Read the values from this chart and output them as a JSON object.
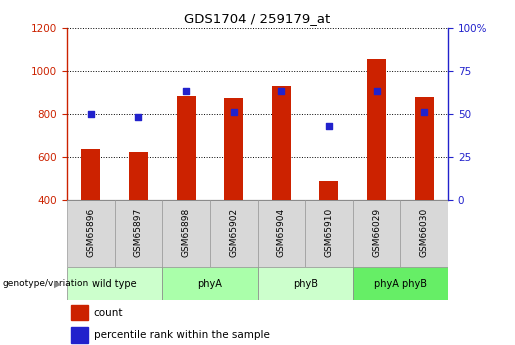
{
  "title": "GDS1704 / 259179_at",
  "samples": [
    "GSM65896",
    "GSM65897",
    "GSM65898",
    "GSM65902",
    "GSM65904",
    "GSM65910",
    "GSM66029",
    "GSM66030"
  ],
  "counts": [
    635,
    625,
    883,
    875,
    930,
    487,
    1055,
    878
  ],
  "percentile_ranks": [
    50,
    48,
    63,
    51,
    63,
    43,
    63,
    51
  ],
  "groups": [
    {
      "label": "wild type",
      "indices": [
        0,
        1
      ],
      "color": "#ccffcc"
    },
    {
      "label": "phyA",
      "indices": [
        2,
        3
      ],
      "color": "#aaffaa"
    },
    {
      "label": "phyB",
      "indices": [
        4,
        5
      ],
      "color": "#ccffcc"
    },
    {
      "label": "phyA phyB",
      "indices": [
        6,
        7
      ],
      "color": "#66ee66"
    }
  ],
  "ylim_left": [
    400,
    1200
  ],
  "ylim_right": [
    0,
    100
  ],
  "yticks_left": [
    400,
    600,
    800,
    1000,
    1200
  ],
  "yticks_right": [
    0,
    25,
    50,
    75,
    100
  ],
  "bar_color": "#cc2200",
  "dot_color": "#2222cc",
  "bar_width": 0.4,
  "left_axis_color": "#cc2200",
  "right_axis_color": "#2222cc",
  "sample_box_color": "#d8d8d8",
  "fig_width": 5.15,
  "fig_height": 3.45,
  "dpi": 100
}
